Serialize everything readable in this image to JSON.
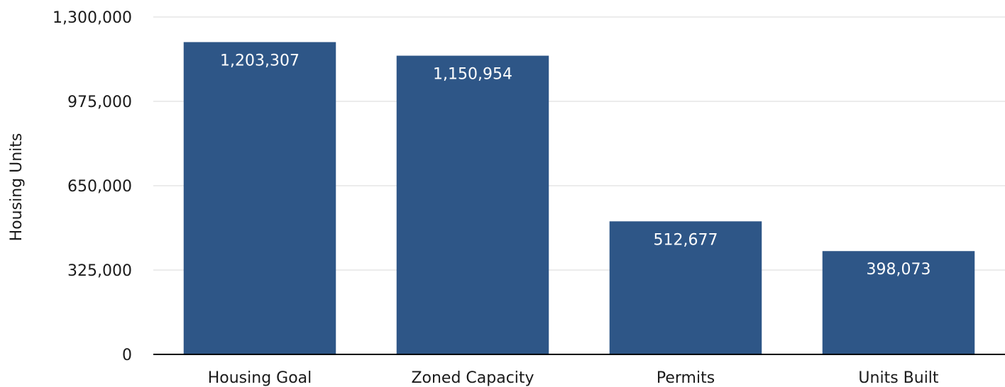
{
  "chart_data": {
    "type": "bar",
    "title": "",
    "xlabel": "",
    "ylabel": "Housing Units",
    "categories": [
      "Housing Goal",
      "Zoned Capacity",
      "Permits",
      "Units Built"
    ],
    "values": [
      1203307,
      1150954,
      512677,
      398073
    ],
    "data_labels": [
      "1,203,307",
      "1,150,954",
      "512,677",
      "398,073"
    ],
    "ylim": [
      0,
      1300000
    ],
    "yticks": [
      0,
      325000,
      650000,
      975000,
      1300000
    ],
    "ytick_labels": [
      "0",
      "325,000",
      "650,000",
      "975,000",
      "1,300,000"
    ],
    "grid": true,
    "legend": "none",
    "colors": {
      "bar": "#2e5687",
      "data_label": "#ffffff",
      "grid": "#d9d9d9",
      "axis": "#000000",
      "text": "#1a1a1a"
    }
  }
}
